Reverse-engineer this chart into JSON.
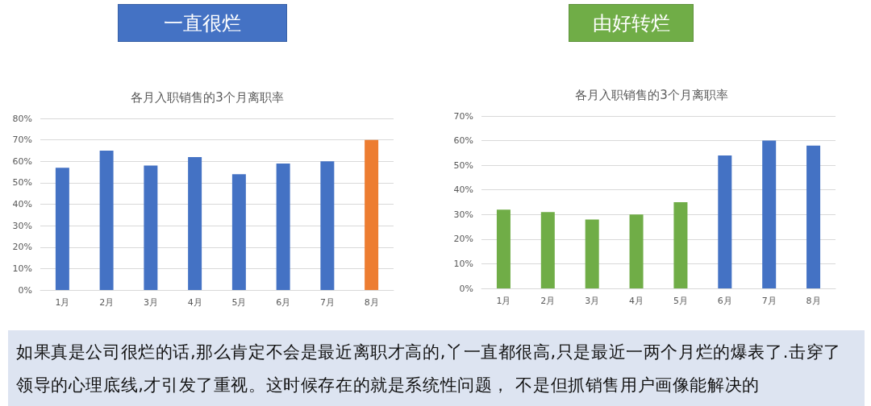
{
  "chart_data": [
    {
      "type": "bar",
      "title": "一直很烂",
      "subtitle": "各月入职销售的3个月离职率",
      "categories": [
        "1月",
        "2月",
        "3月",
        "4月",
        "5月",
        "6月",
        "7月",
        "8月"
      ],
      "values": [
        57,
        65,
        58,
        62,
        54,
        59,
        60,
        70
      ],
      "colors": [
        "#4472c4",
        "#4472c4",
        "#4472c4",
        "#4472c4",
        "#4472c4",
        "#4472c4",
        "#4472c4",
        "#ed7d31"
      ],
      "ylim": [
        0,
        80
      ],
      "yticks": [
        {
          "value": 0,
          "label": "0%"
        },
        {
          "value": 10,
          "label": "10%"
        },
        {
          "value": 20,
          "label": "20%"
        },
        {
          "value": 30,
          "label": "30%"
        },
        {
          "value": 40,
          "label": "40%"
        },
        {
          "value": 50,
          "label": "50%"
        },
        {
          "value": 60,
          "label": "60%"
        },
        {
          "value": 70,
          "label": "70%"
        },
        {
          "value": 80,
          "label": "80%"
        }
      ],
      "grid": "y"
    },
    {
      "type": "bar",
      "title": "由好转烂",
      "subtitle": "各月入职销售的3个月离职率",
      "categories": [
        "1月",
        "2月",
        "3月",
        "4月",
        "5月",
        "6月",
        "7月",
        "8月"
      ],
      "values": [
        32,
        31,
        28,
        30,
        35,
        54,
        60,
        58
      ],
      "colors": [
        "#70ad47",
        "#70ad47",
        "#70ad47",
        "#70ad47",
        "#70ad47",
        "#4472c4",
        "#4472c4",
        "#4472c4"
      ],
      "ylim": [
        0,
        70
      ],
      "yticks": [
        {
          "value": 0,
          "label": "0%"
        },
        {
          "value": 10,
          "label": "10%"
        },
        {
          "value": 20,
          "label": "20%"
        },
        {
          "value": 30,
          "label": "30%"
        },
        {
          "value": 40,
          "label": "40%"
        },
        {
          "value": 50,
          "label": "50%"
        },
        {
          "value": 60,
          "label": "60%"
        },
        {
          "value": 70,
          "label": "70%"
        }
      ],
      "grid": "y",
      "annotations": [
        "如果真是公司很烂的话,那么肯定不会是最近离职才高的,丫一直都很高,只是最近一两个月烂的爆表了.击穿了领导的心理底线,才引发了重视。这时候存在的就是系统性问题， 不是但抓销售用户画像能解决的"
      ]
    }
  ]
}
